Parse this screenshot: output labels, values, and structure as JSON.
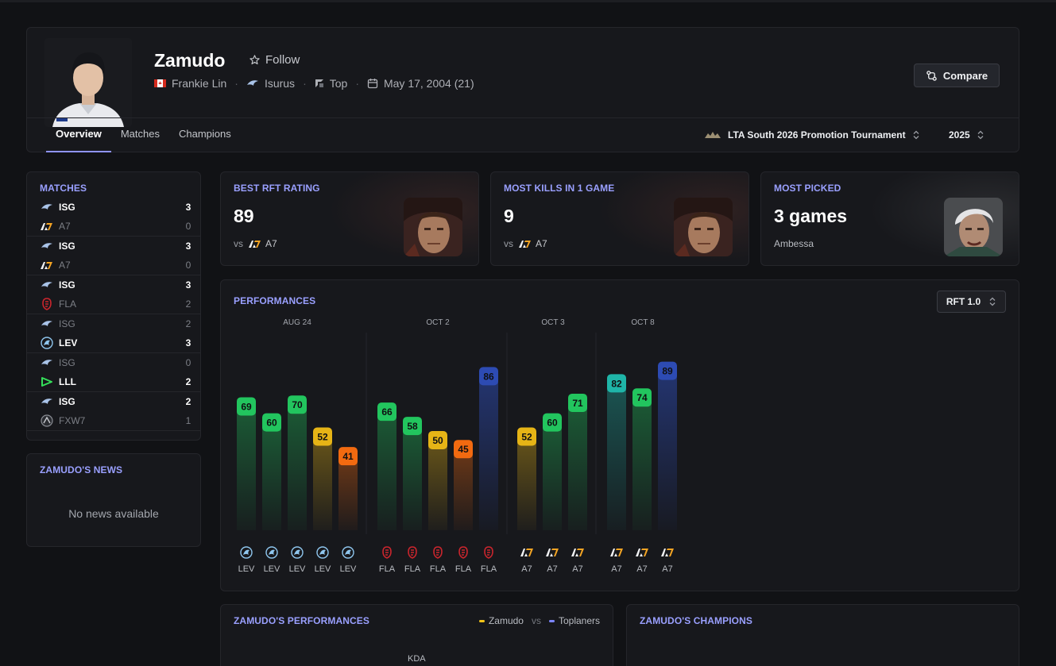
{
  "player": {
    "name": "Zamudo",
    "follow_label": "Follow",
    "real_name": "Frankie Lin",
    "team": "Isurus",
    "role": "Top",
    "birthdate": "May 17, 2004 (21)",
    "compare_label": "Compare"
  },
  "tabs": [
    "Overview",
    "Matches",
    "Champions"
  ],
  "filters": {
    "tournament": "LTA South 2026 Promotion Tournament",
    "year": "2025"
  },
  "matches": {
    "title": "MATCHES",
    "items": [
      {
        "top": {
          "team": "ISG",
          "score": "3",
          "result": "win",
          "logo": "isurus-logo-icon"
        },
        "bottom": {
          "team": "A7",
          "score": "0",
          "result": "loss",
          "logo": "a7-logo-icon"
        }
      },
      {
        "top": {
          "team": "ISG",
          "score": "3",
          "result": "win",
          "logo": "isurus-logo-icon"
        },
        "bottom": {
          "team": "A7",
          "score": "0",
          "result": "loss",
          "logo": "a7-logo-icon"
        }
      },
      {
        "top": {
          "team": "ISG",
          "score": "3",
          "result": "win",
          "logo": "isurus-logo-icon"
        },
        "bottom": {
          "team": "FLA",
          "score": "2",
          "result": "loss",
          "logo": "flamengo-logo-icon"
        }
      },
      {
        "top": {
          "team": "ISG",
          "score": "2",
          "result": "loss",
          "logo": "isurus-logo-icon"
        },
        "bottom": {
          "team": "LEV",
          "score": "3",
          "result": "win",
          "logo": "leviatan-logo-icon"
        }
      },
      {
        "top": {
          "team": "ISG",
          "score": "0",
          "result": "loss",
          "logo": "isurus-logo-icon"
        },
        "bottom": {
          "team": "LLL",
          "score": "2",
          "result": "win",
          "logo": "lll-logo-icon"
        }
      },
      {
        "top": {
          "team": "ISG",
          "score": "2",
          "result": "win",
          "logo": "isurus-logo-icon"
        },
        "bottom": {
          "team": "FXW7",
          "score": "1",
          "result": "loss",
          "logo": "fxw7-logo-icon"
        }
      }
    ]
  },
  "news": {
    "title": "ZAMUDO'S NEWS",
    "empty": "No news available"
  },
  "stats": [
    {
      "title": "BEST RFT RATING",
      "value": "89",
      "vs": "vs",
      "opponent": "A7",
      "champion": "Darius"
    },
    {
      "title": "MOST KILLS IN 1 GAME",
      "value": "9",
      "vs": "vs",
      "opponent": "A7",
      "champion": "Darius"
    },
    {
      "title": "MOST PICKED",
      "value": "3 games",
      "subtitle": "Ambessa",
      "champion": "Ambessa"
    }
  ],
  "performances": {
    "title": "PERFORMANCES",
    "metric": "RFT 1.0"
  },
  "chart_data": {
    "type": "bar",
    "metric": "RFT 1.0",
    "ylim": [
      0,
      100
    ],
    "groups": [
      {
        "date": "AUG 24",
        "games": [
          {
            "value": 69,
            "opponent": "LEV"
          },
          {
            "value": 60,
            "opponent": "LEV"
          },
          {
            "value": 70,
            "opponent": "LEV"
          },
          {
            "value": 52,
            "opponent": "LEV"
          },
          {
            "value": 41,
            "opponent": "LEV"
          }
        ]
      },
      {
        "date": "OCT 2",
        "games": [
          {
            "value": 66,
            "opponent": "FLA"
          },
          {
            "value": 58,
            "opponent": "FLA"
          },
          {
            "value": 50,
            "opponent": "FLA"
          },
          {
            "value": 45,
            "opponent": "FLA"
          },
          {
            "value": 86,
            "opponent": "FLA"
          }
        ]
      },
      {
        "date": "OCT 3",
        "games": [
          {
            "value": 52,
            "opponent": "A7"
          },
          {
            "value": 60,
            "opponent": "A7"
          },
          {
            "value": 71,
            "opponent": "A7"
          }
        ]
      },
      {
        "date": "OCT 8",
        "games": [
          {
            "value": 82,
            "opponent": "A7"
          },
          {
            "value": 74,
            "opponent": "A7"
          },
          {
            "value": 89,
            "opponent": "A7"
          }
        ]
      }
    ],
    "colors": {
      "blue": "#2d4bb3",
      "teal": "#1fb5a8",
      "green": "#22c55e",
      "yellow": "#e6b416",
      "orange": "#f26a10"
    }
  },
  "bottom": {
    "performances_title": "ZAMUDO'S PERFORMANCES",
    "legend_player": "Zamudo",
    "legend_vs": "vs",
    "legend_group": "Toplaners",
    "kda_label": "KDA",
    "champions_title": "ZAMUDO'S CHAMPIONS"
  }
}
